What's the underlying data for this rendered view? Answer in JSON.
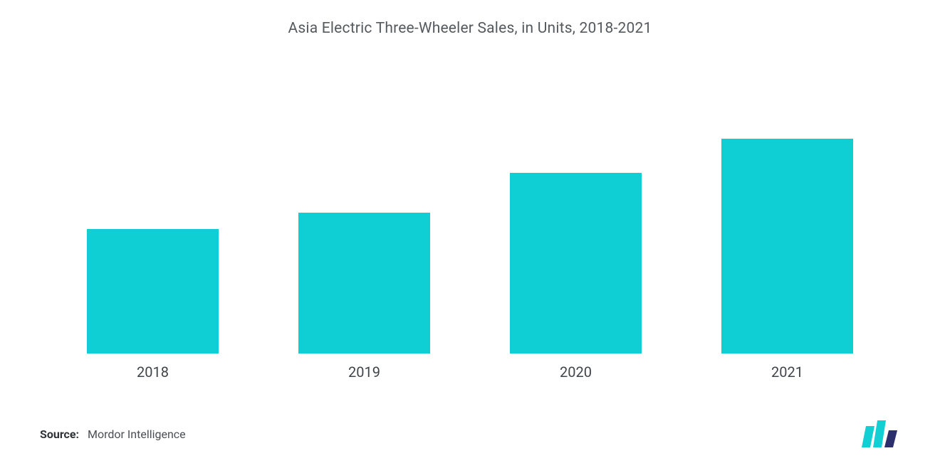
{
  "chart": {
    "type": "bar",
    "title": "Asia Electric Three-Wheeler Sales, in Units, 2018-2021",
    "title_fontsize": 21,
    "title_color": "#555a5f",
    "categories": [
      "2018",
      "2019",
      "2020",
      "2021"
    ],
    "values": [
      44,
      50,
      64,
      76
    ],
    "ylim": [
      0,
      100
    ],
    "bar_colors": [
      "#10cfd4",
      "#10cfd4",
      "#10cfd4",
      "#10cfd4"
    ],
    "bar_width_pct": 62,
    "background_color": "#ffffff",
    "axis_label_fontsize": 20,
    "axis_label_color": "#3f4449",
    "grid": false
  },
  "footer": {
    "source_label": "Source:",
    "source_text": "Mordor Intelligence",
    "source_label_color": "#2e3338",
    "source_text_color": "#4a4f54"
  },
  "logo": {
    "bar1_color": "#12cfd4",
    "bar2_color": "#12cfd4",
    "bar3_color": "#2b2f6b"
  }
}
